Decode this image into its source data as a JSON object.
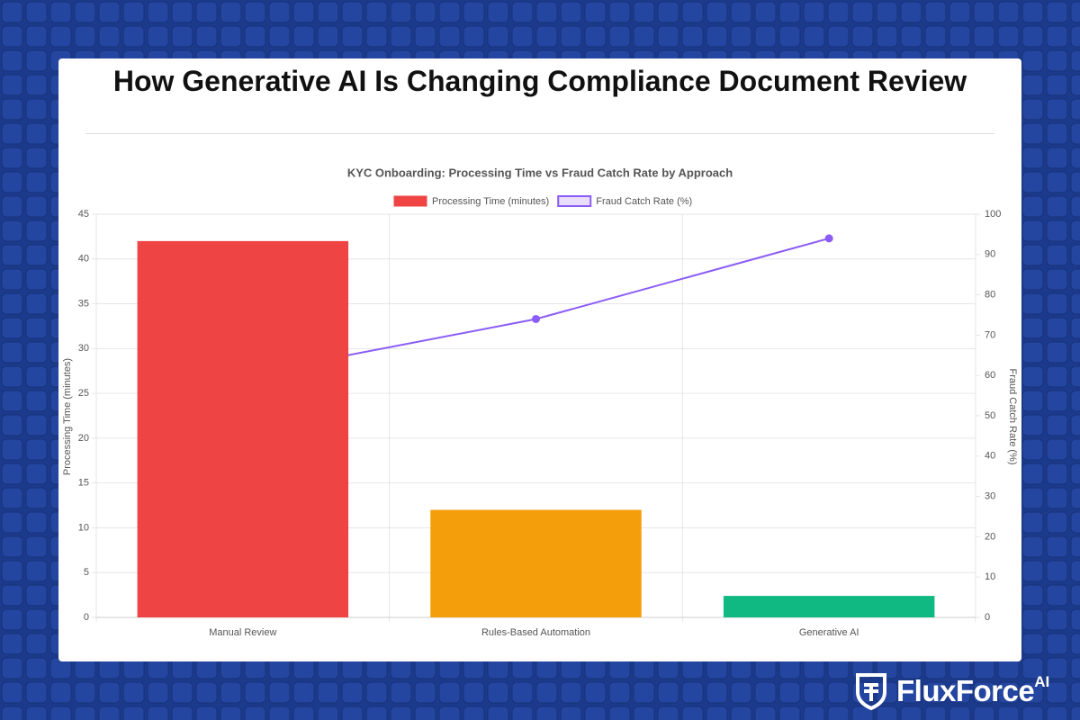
{
  "page_title": "How Generative AI Is Changing Compliance Document Review",
  "brand": {
    "name": "FluxForce",
    "suffix": "AI"
  },
  "chart_data": {
    "type": "bar",
    "title": "KYC Onboarding: Processing Time vs Fraud Catch Rate by Approach",
    "categories": [
      "Manual Review",
      "Rules-Based Automation",
      "Generative AI"
    ],
    "series": [
      {
        "name": "Processing Time (minutes)",
        "type": "bar",
        "color": "#ef4444",
        "colors": [
          "#ef4444",
          "#f59e0b",
          "#10b981"
        ],
        "values": [
          42,
          12,
          2.4
        ]
      },
      {
        "name": "Fraud Catch Rate (%)",
        "type": "line",
        "axis": "y2",
        "color": "#8b5cf6",
        "fill": "#e9ddfc",
        "values": [
          60,
          74,
          94
        ]
      }
    ],
    "ylabel": "Processing Time (minutes)",
    "y2label": "Fraud Catch Rate (%)",
    "ylim": [
      0,
      45
    ],
    "yticks": [
      0,
      5,
      10,
      15,
      20,
      25,
      30,
      35,
      40,
      45
    ],
    "y2lim": [
      0,
      100
    ],
    "y2ticks": [
      0,
      10,
      20,
      30,
      40,
      50,
      60,
      70,
      80,
      90,
      100
    ],
    "grid": true
  }
}
